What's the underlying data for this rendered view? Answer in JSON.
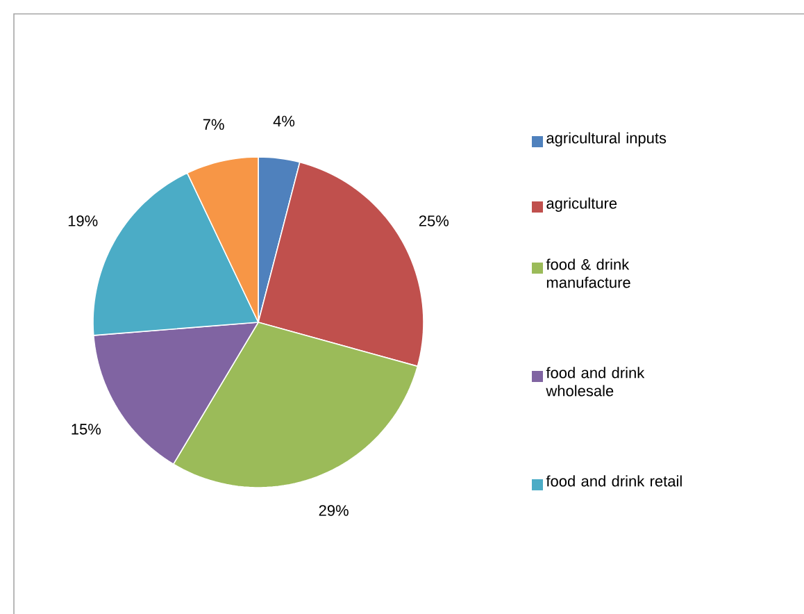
{
  "chart_data": {
    "type": "pie",
    "categories": [
      "agricultural inputs",
      "agriculture",
      "food & drink manufacture",
      "food and drink wholesale",
      "food and drink retail",
      null
    ],
    "values": [
      4,
      25,
      29,
      15,
      19,
      7
    ],
    "value_labels": [
      "4%",
      "25%",
      "29%",
      "15%",
      "19%",
      "7%"
    ],
    "colors": [
      "#4f81bd",
      "#c0504d",
      "#9bbb59",
      "#8064a2",
      "#4bacc6",
      "#f79646"
    ],
    "legend": "right"
  }
}
